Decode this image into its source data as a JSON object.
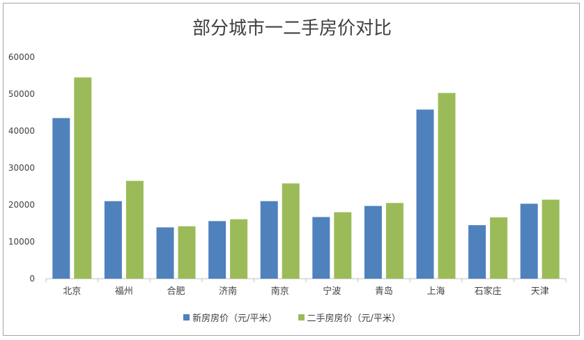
{
  "chart_data": {
    "type": "bar",
    "title": "部分城市一二手房价对比",
    "categories": [
      "北京",
      "福州",
      "合肥",
      "济南",
      "南京",
      "宁波",
      "青岛",
      "上海",
      "石家庄",
      "天津"
    ],
    "series": [
      {
        "name": "新房房价（元/平米）",
        "color": "#4f81bd",
        "values": [
          43500,
          21000,
          13900,
          15600,
          21000,
          16700,
          19700,
          45800,
          14500,
          20300
        ]
      },
      {
        "name": "二手房房价（元/平米）",
        "color": "#9bbb59",
        "values": [
          54500,
          26500,
          14200,
          16100,
          25800,
          18000,
          20500,
          50300,
          16600,
          21400
        ]
      }
    ],
    "yticks": [
      "0",
      "10000",
      "20000",
      "30000",
      "40000",
      "50000",
      "60000"
    ],
    "ylim": [
      0,
      60000
    ],
    "grid": false,
    "legend": "bottom"
  }
}
